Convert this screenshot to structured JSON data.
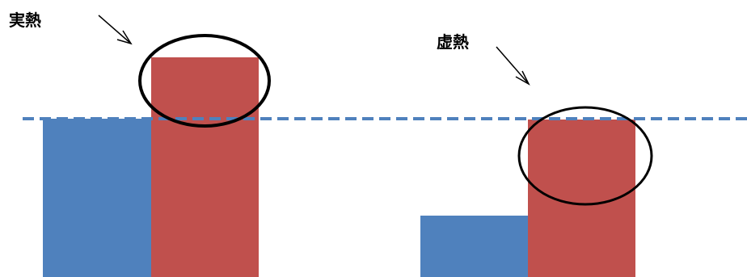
{
  "annotations": {
    "left": "実熱",
    "right": "虚熱"
  },
  "colors": {
    "blue_bar": "#4f81bd",
    "red_bar": "#c0504d",
    "dashed_line": "#4f81bd",
    "outline": "#000000"
  }
}
